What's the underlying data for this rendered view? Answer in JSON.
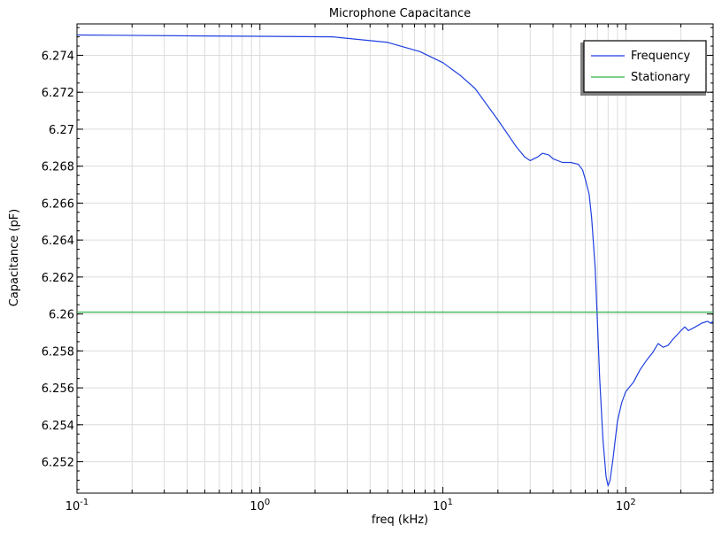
{
  "chart_data": {
    "type": "line",
    "title": "Microphone Capacitance",
    "xlabel": "freq (kHz)",
    "ylabel": "Capacitance (pF)",
    "xscale": "log",
    "xlim": [
      0.1,
      300
    ],
    "ylim": [
      6.2503,
      6.2757
    ],
    "grid": true,
    "legend_position": "top-right",
    "x_tick_labels": [
      {
        "value": 0.1,
        "base": "10",
        "exp": "-1"
      },
      {
        "value": 1,
        "base": "10",
        "exp": "0"
      },
      {
        "value": 10,
        "base": "10",
        "exp": "1"
      },
      {
        "value": 100,
        "base": "10",
        "exp": "2"
      }
    ],
    "y_ticks": [
      6.252,
      6.254,
      6.256,
      6.258,
      6.26,
      6.262,
      6.264,
      6.266,
      6.268,
      6.27,
      6.272,
      6.274
    ],
    "y_tick_labels": [
      "6.252",
      "6.254",
      "6.256",
      "6.258",
      "6.26",
      "6.262",
      "6.264",
      "6.266",
      "6.268",
      "6.27",
      "6.272",
      "6.274"
    ],
    "series": [
      {
        "name": "Frequency",
        "color": "#1f3fe0",
        "x": [
          0.1,
          0.5,
          1,
          2.5,
          5,
          7.5,
          10,
          12.5,
          15,
          20,
          25,
          28,
          30,
          33,
          35,
          38,
          40,
          45,
          50,
          55,
          58,
          60,
          63,
          65,
          68,
          70,
          72,
          75,
          78,
          80,
          82,
          85,
          88,
          90,
          95,
          100,
          110,
          120,
          130,
          140,
          150,
          160,
          170,
          180,
          200,
          210,
          220,
          240,
          260,
          280,
          290,
          300
        ],
        "y": [
          6.2751,
          6.27505,
          6.27503,
          6.275,
          6.2747,
          6.2742,
          6.2736,
          6.2729,
          6.2722,
          6.2705,
          6.2691,
          6.2685,
          6.2683,
          6.2685,
          6.2687,
          6.2686,
          6.2684,
          6.2682,
          6.2682,
          6.2681,
          6.2678,
          6.2673,
          6.2665,
          6.2652,
          6.2625,
          6.2595,
          6.2565,
          6.2532,
          6.2512,
          6.2507,
          6.251,
          6.2521,
          6.2534,
          6.2542,
          6.2552,
          6.2558,
          6.2563,
          6.257,
          6.2575,
          6.2579,
          6.2584,
          6.2582,
          6.2583,
          6.2586,
          6.2591,
          6.2593,
          6.2591,
          6.2593,
          6.2595,
          6.2596,
          6.2595,
          6.2596
        ]
      },
      {
        "name": "Stationary",
        "color": "#2db84a",
        "x": [
          0.1,
          300
        ],
        "y": [
          6.2601,
          6.2601
        ]
      }
    ]
  }
}
